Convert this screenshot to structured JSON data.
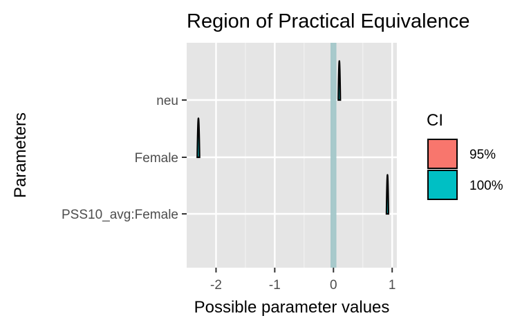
{
  "chart_data": {
    "type": "ridgeline",
    "title": "Region of Practical Equivalence",
    "xlabel": "Possible parameter values",
    "ylabel": "Parameters",
    "xlim": [
      -2.5,
      1.08
    ],
    "x_ticks": [
      -2,
      -1,
      0,
      1
    ],
    "x_tick_labels": [
      "-2",
      "-1",
      "0",
      "1"
    ],
    "categories": [
      "neu",
      "Female",
      "PSS10_avg:Female"
    ],
    "rope": [
      -0.05,
      0.05
    ],
    "rope_color": "#9fc4c6",
    "series": [
      {
        "parameter": "neu",
        "center": 0.1,
        "spread": 0.01
      },
      {
        "parameter": "Female",
        "center": -2.3,
        "spread": 0.02
      },
      {
        "parameter": "PSS10_avg:Female",
        "center": 0.92,
        "spread": 0.01
      }
    ],
    "legend": {
      "title": "CI",
      "position": "right",
      "entries": [
        {
          "label": "95%",
          "color": "#F8766D"
        },
        {
          "label": "100%",
          "color": "#00BFC4"
        }
      ]
    },
    "grid": true,
    "panel_background": "#e5e5e5"
  }
}
